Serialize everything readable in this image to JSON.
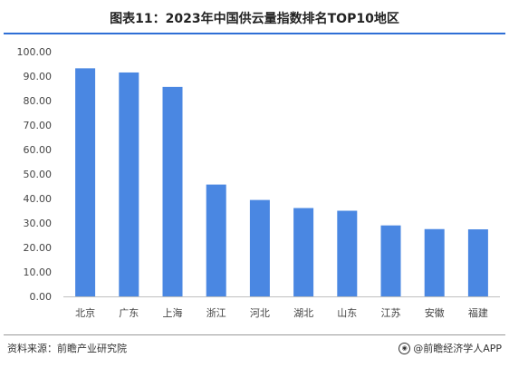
{
  "header": {
    "title": "图表11：2023年中国供云量指数排名TOP10地区"
  },
  "footer": {
    "source": "资料来源：前瞻产业研究院",
    "credit": "@前瞻经济学人APP"
  },
  "colors": {
    "bar": "#4a87e2",
    "rule": "#2f6fd6"
  },
  "chart_data": {
    "type": "bar",
    "title": "图表11：2023年中国供云量指数排名TOP10地区",
    "xlabel": "",
    "ylabel": "",
    "categories": [
      "北京",
      "广东",
      "上海",
      "浙江",
      "河北",
      "湖北",
      "山东",
      "江苏",
      "安徽",
      "福建"
    ],
    "values": [
      93.2,
      91.5,
      85.6,
      45.7,
      39.4,
      36.1,
      35.0,
      29.0,
      27.5,
      27.4
    ],
    "ylim": [
      0,
      100
    ],
    "yticks": [
      "0.00",
      "10.00",
      "20.00",
      "30.00",
      "40.00",
      "50.00",
      "60.00",
      "70.00",
      "80.00",
      "90.00",
      "100.00"
    ],
    "grid": false,
    "legend": "none"
  }
}
